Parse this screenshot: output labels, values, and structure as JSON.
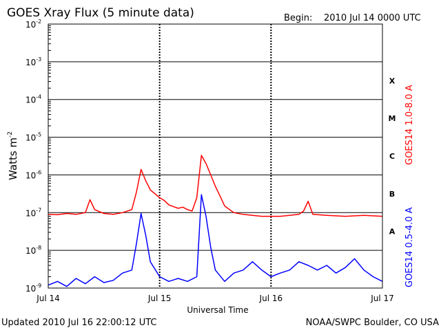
{
  "header": {
    "title": "GOES Xray Flux (5 minute data)",
    "begin_label": "Begin:",
    "begin_value": "2010 Jul 14 0000 UTC"
  },
  "footer": {
    "updated": "Updated 2010 Jul 16 22:00:12 UTC",
    "credit": "NOAA/SWPC Boulder, CO USA"
  },
  "colors": {
    "long_channel": "#ff0000",
    "short_channel": "#0000ff",
    "axes": "#000000",
    "background": "#ffffff"
  },
  "chart_data": {
    "type": "line",
    "xlabel": "Universal Time",
    "ylabel_base": "Watts m",
    "ylabel_exponent": "-2",
    "y_scale": "log",
    "ylim": [
      1e-09,
      0.01
    ],
    "xlim": [
      "2010-07-14T00:00",
      "2010-07-17T00:00"
    ],
    "x_ticks": [
      {
        "x": "2010-07-14T00:00",
        "label": "Jul 14"
      },
      {
        "x": "2010-07-15T00:00",
        "label": "Jul 15"
      },
      {
        "x": "2010-07-16T00:00",
        "label": "Jul 16"
      },
      {
        "x": "2010-07-17T00:00",
        "label": "Jul 17"
      }
    ],
    "y_ticks": [
      {
        "value": 1e-09,
        "base": "10",
        "exp": "-9"
      },
      {
        "value": 1e-08,
        "base": "10",
        "exp": "-8"
      },
      {
        "value": 1e-07,
        "base": "10",
        "exp": "-7"
      },
      {
        "value": 1e-06,
        "base": "10",
        "exp": "-6"
      },
      {
        "value": 1e-05,
        "base": "10",
        "exp": "-5"
      },
      {
        "value": 0.0001,
        "base": "10",
        "exp": "-4"
      },
      {
        "value": 0.001,
        "base": "10",
        "exp": "-3"
      },
      {
        "value": 0.01,
        "base": "10",
        "exp": "-2"
      }
    ],
    "flare_classes": [
      {
        "label": "A",
        "min": 1e-08,
        "max": 1e-07
      },
      {
        "label": "B",
        "min": 1e-07,
        "max": 1e-06
      },
      {
        "label": "C",
        "min": 1e-06,
        "max": 1e-05
      },
      {
        "label": "M",
        "min": 1e-05,
        "max": 0.0001
      },
      {
        "label": "X",
        "min": 0.0001,
        "max": 0.001
      }
    ],
    "grid": "horizontal lines at each decade; dashed day separators",
    "series": [
      {
        "name": "GOES14 1.0-8.0 A",
        "color": "#ff0000",
        "points": [
          [
            "2010-07-14T00:00",
            9e-08
          ],
          [
            "2010-07-14T02:00",
            8.8e-08
          ],
          [
            "2010-07-14T04:00",
            9.5e-08
          ],
          [
            "2010-07-14T06:00",
            9e-08
          ],
          [
            "2010-07-14T08:00",
            1e-07
          ],
          [
            "2010-07-14T09:00",
            2.2e-07
          ],
          [
            "2010-07-14T10:00",
            1.2e-07
          ],
          [
            "2010-07-14T12:00",
            9.5e-08
          ],
          [
            "2010-07-14T14:00",
            9e-08
          ],
          [
            "2010-07-14T16:00",
            1e-07
          ],
          [
            "2010-07-14T18:00",
            1.2e-07
          ],
          [
            "2010-07-14T19:00",
            3.5e-07
          ],
          [
            "2010-07-14T20:00",
            1.4e-06
          ],
          [
            "2010-07-14T21:00",
            7e-07
          ],
          [
            "2010-07-14T22:00",
            4e-07
          ],
          [
            "2010-07-15T00:00",
            2.5e-07
          ],
          [
            "2010-07-15T01:00",
            2.1e-07
          ],
          [
            "2010-07-15T02:00",
            1.6e-07
          ],
          [
            "2010-07-15T04:00",
            1.3e-07
          ],
          [
            "2010-07-15T05:00",
            1.4e-07
          ],
          [
            "2010-07-15T06:00",
            1.2e-07
          ],
          [
            "2010-07-15T07:00",
            1.1e-07
          ],
          [
            "2010-07-15T08:00",
            2.5e-07
          ],
          [
            "2010-07-15T09:00",
            3.3e-06
          ],
          [
            "2010-07-15T10:00",
            2e-06
          ],
          [
            "2010-07-15T11:00",
            1e-06
          ],
          [
            "2010-07-15T12:00",
            5e-07
          ],
          [
            "2010-07-15T13:00",
            2.8e-07
          ],
          [
            "2010-07-15T14:00",
            1.5e-07
          ],
          [
            "2010-07-15T16:00",
            1e-07
          ],
          [
            "2010-07-15T18:00",
            9e-08
          ],
          [
            "2010-07-15T20:00",
            8.5e-08
          ],
          [
            "2010-07-15T22:00",
            8e-08
          ],
          [
            "2010-07-16T00:00",
            8e-08
          ],
          [
            "2010-07-16T02:00",
            8e-08
          ],
          [
            "2010-07-16T04:00",
            8.5e-08
          ],
          [
            "2010-07-16T06:00",
            9e-08
          ],
          [
            "2010-07-16T07:00",
            1.1e-07
          ],
          [
            "2010-07-16T08:00",
            2e-07
          ],
          [
            "2010-07-16T09:00",
            9e-08
          ],
          [
            "2010-07-16T12:00",
            8.5e-08
          ],
          [
            "2010-07-16T16:00",
            8e-08
          ],
          [
            "2010-07-16T20:00",
            8.5e-08
          ],
          [
            "2010-07-17T00:00",
            8e-08
          ]
        ]
      },
      {
        "name": "GOES14 0.5-4.0 A",
        "color": "#0000ff",
        "points": [
          [
            "2010-07-14T00:00",
            1.2e-09
          ],
          [
            "2010-07-14T02:00",
            1.5e-09
          ],
          [
            "2010-07-14T04:00",
            1.1e-09
          ],
          [
            "2010-07-14T06:00",
            1.8e-09
          ],
          [
            "2010-07-14T08:00",
            1.3e-09
          ],
          [
            "2010-07-14T10:00",
            2e-09
          ],
          [
            "2010-07-14T12:00",
            1.4e-09
          ],
          [
            "2010-07-14T14:00",
            1.6e-09
          ],
          [
            "2010-07-14T16:00",
            2.5e-09
          ],
          [
            "2010-07-14T18:00",
            3e-09
          ],
          [
            "2010-07-14T19:00",
            1.5e-08
          ],
          [
            "2010-07-14T20:00",
            9.5e-08
          ],
          [
            "2010-07-14T21:00",
            2.5e-08
          ],
          [
            "2010-07-14T22:00",
            5e-09
          ],
          [
            "2010-07-15T00:00",
            2e-09
          ],
          [
            "2010-07-15T02:00",
            1.5e-09
          ],
          [
            "2010-07-15T04:00",
            1.8e-09
          ],
          [
            "2010-07-15T06:00",
            1.5e-09
          ],
          [
            "2010-07-15T08:00",
            2e-09
          ],
          [
            "2010-07-15T09:00",
            3e-07
          ],
          [
            "2010-07-15T10:00",
            8e-08
          ],
          [
            "2010-07-15T11:00",
            1.2e-08
          ],
          [
            "2010-07-15T12:00",
            3e-09
          ],
          [
            "2010-07-15T14:00",
            1.5e-09
          ],
          [
            "2010-07-15T16:00",
            2.5e-09
          ],
          [
            "2010-07-15T18:00",
            3e-09
          ],
          [
            "2010-07-15T20:00",
            5e-09
          ],
          [
            "2010-07-15T22:00",
            3e-09
          ],
          [
            "2010-07-16T00:00",
            2e-09
          ],
          [
            "2010-07-16T02:00",
            2.5e-09
          ],
          [
            "2010-07-16T04:00",
            3e-09
          ],
          [
            "2010-07-16T06:00",
            5e-09
          ],
          [
            "2010-07-16T08:00",
            4e-09
          ],
          [
            "2010-07-16T10:00",
            3e-09
          ],
          [
            "2010-07-16T12:00",
            4e-09
          ],
          [
            "2010-07-16T14:00",
            2.5e-09
          ],
          [
            "2010-07-16T16:00",
            3.5e-09
          ],
          [
            "2010-07-16T18:00",
            6e-09
          ],
          [
            "2010-07-16T20:00",
            3e-09
          ],
          [
            "2010-07-16T22:00",
            2e-09
          ],
          [
            "2010-07-17T00:00",
            1.5e-09
          ]
        ]
      }
    ]
  }
}
